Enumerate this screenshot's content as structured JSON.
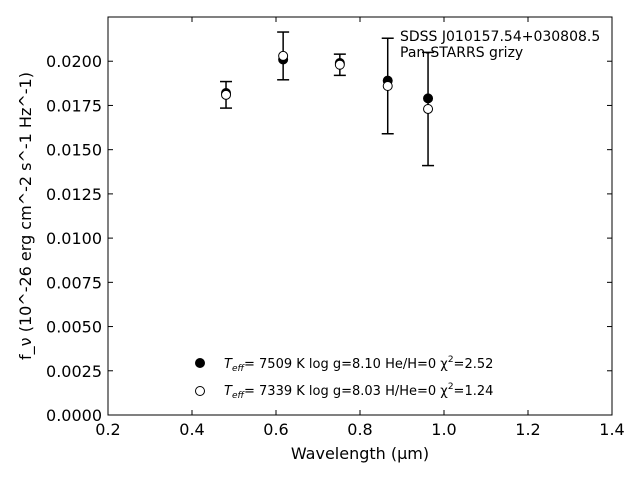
{
  "chart_data": {
    "type": "scatter",
    "xlabel": "Wavelength (μm)",
    "ylabel": "f_ν (10^-26 erg cm^-2 s^-1 Hz^-1)",
    "xlim": [
      0.2,
      1.4
    ],
    "ylim": [
      0.0,
      0.0225
    ],
    "x_ticks": [
      "0.2",
      "0.4",
      "0.6",
      "0.8",
      "1.0",
      "1.2",
      "1.4"
    ],
    "y_ticks": [
      "0.0000",
      "0.0025",
      "0.0050",
      "0.0075",
      "0.0100",
      "0.0125",
      "0.0150",
      "0.0175",
      "0.0200"
    ],
    "grid": false,
    "annotation": [
      "SDSS J010157.54+030808.5",
      "Pan-STARRS grizy"
    ],
    "observed": {
      "x": [
        0.481,
        0.617,
        0.752,
        0.866,
        0.962
      ],
      "y": [
        0.0181,
        0.0203,
        0.0198,
        0.0186,
        0.0173
      ],
      "yerr": [
        0.00075,
        0.00135,
        0.0006,
        0.0027,
        0.0032
      ]
    },
    "series": [
      {
        "marker": "filled-circle",
        "x": [
          0.481,
          0.617,
          0.752,
          0.866,
          0.962
        ],
        "y": [
          0.0182,
          0.0201,
          0.0199,
          0.0189,
          0.0179
        ]
      },
      {
        "marker": "open-circle",
        "x": [
          0.481,
          0.617,
          0.752,
          0.866,
          0.962
        ],
        "y": [
          0.0181,
          0.0203,
          0.0198,
          0.0186,
          0.0173
        ]
      }
    ],
    "legend": {
      "placement": "lower-center",
      "entries": [
        {
          "teff_label": "T",
          "teff_sub": "eff",
          "text": "=  7509 K  log g=8.10  He/H=0  χ",
          "sup": "2",
          "chi": "=2.52"
        },
        {
          "teff_label": "T",
          "teff_sub": "eff",
          "text": "=  7339 K  log g=8.03  H/He=0  χ",
          "sup": "2",
          "chi": "=1.24"
        }
      ]
    }
  }
}
